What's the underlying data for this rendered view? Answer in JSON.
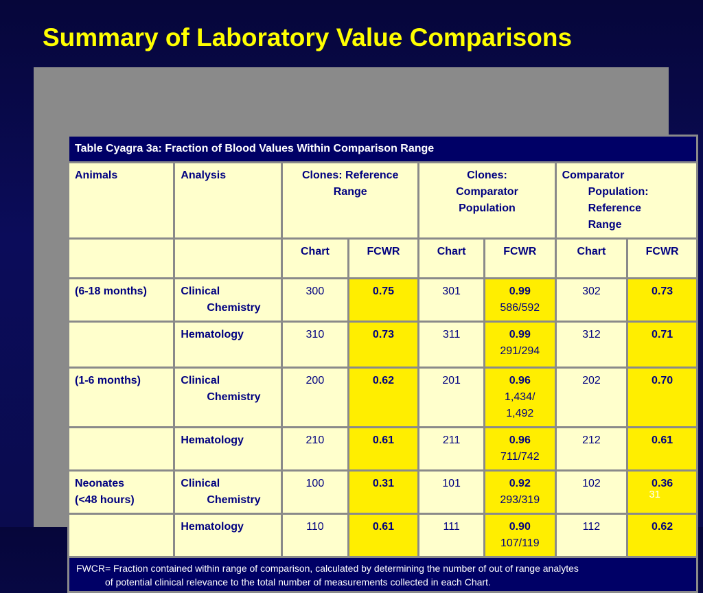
{
  "title": "Summary of Laboratory Value Comparisons",
  "table_caption": "Table Cyagra 3a:  Fraction of Blood Values Within Comparison Range",
  "headers": {
    "animals": "Animals",
    "analysis": "Analysis",
    "clones_reference": [
      "Clones: Reference",
      "Range"
    ],
    "clones_comparator": [
      "Clones:",
      "Comparator",
      "Population"
    ],
    "comparator_population": [
      "Comparator",
      "Population:",
      "Reference",
      "Range"
    ]
  },
  "subheaders": [
    "Chart",
    "FCWR",
    "Chart",
    "FCWR",
    "Chart",
    "FCWR"
  ],
  "rows": [
    {
      "animals": [
        "(6-18 months)"
      ],
      "analysis": [
        "Clinical",
        "Chemistry"
      ],
      "c1": "300",
      "f1": "0.75",
      "c2": "301",
      "f2": "0.99",
      "f2_detail": [
        "586/592"
      ],
      "c3": "302",
      "f3": "0.73"
    },
    {
      "animals": [],
      "analysis": [
        "Hematology"
      ],
      "c1": "310",
      "f1": "0.73",
      "c2": "311",
      "f2": "0.99",
      "f2_detail": [
        "291/294"
      ],
      "c3": "312",
      "f3": "0.71"
    },
    {
      "animals": [
        "(1-6 months)"
      ],
      "analysis": [
        "Clinical",
        "Chemistry"
      ],
      "c1": "200",
      "f1": "0.62",
      "c2": "201",
      "f2": "0.96",
      "f2_detail": [
        "1,434/",
        "1,492"
      ],
      "c3": "202",
      "f3": "0.70"
    },
    {
      "animals": [],
      "analysis": [
        "Hematology"
      ],
      "c1": "210",
      "f1": "0.61",
      "c2": "211",
      "f2": "0.96",
      "f2_detail": [
        "711/742"
      ],
      "c3": "212",
      "f3": "0.61"
    },
    {
      "animals": [
        "Neonates",
        "(<48 hours)"
      ],
      "analysis": [
        "Clinical",
        "Chemistry"
      ],
      "c1": "100",
      "f1": "0.31",
      "c2": "101",
      "f2": "0.92",
      "f2_detail": [
        "293/319"
      ],
      "c3": "102",
      "f3": "0.36"
    },
    {
      "animals": [],
      "analysis": [
        "Hematology"
      ],
      "c1": "110",
      "f1": "0.61",
      "c2": "111",
      "f2": "0.90",
      "f2_detail": [
        "107/119"
      ],
      "c3": "112",
      "f3": "0.62"
    }
  ],
  "footnote": [
    "FWCR= Fraction contained within range of comparison, calculated by determining the number of out of range analytes",
    "of potential clinical relevance to the total number of measurements collected in each Chart."
  ],
  "page_number": "31",
  "colors": {
    "title": "#ffff00",
    "highlight": "#ffee00",
    "cell": "#ffffcc",
    "text": "#000080",
    "background": "#0b0c5a"
  }
}
